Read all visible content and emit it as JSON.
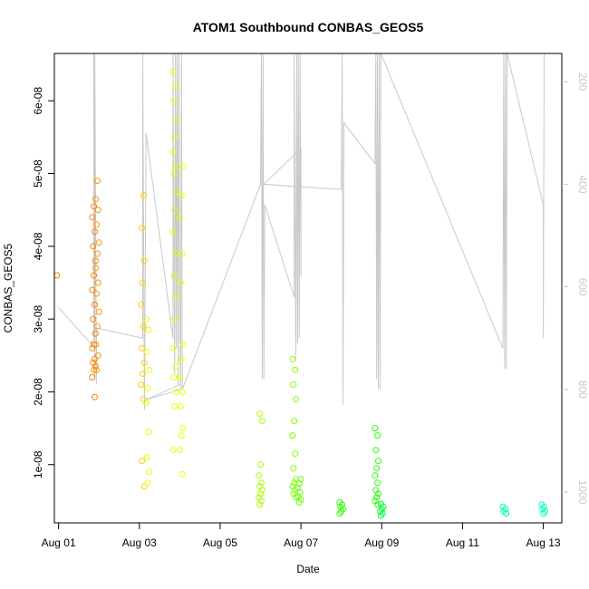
{
  "chart_data": {
    "type": "scatter",
    "title": "ATOM1 Southbound CONBAS_GEOS5",
    "xlabel": "Date",
    "ylabel": "CONBAS_GEOS5",
    "xlim": [
      "2016-07-31T21:30",
      "2016-08-13T11:00"
    ],
    "ylim": [
      2e-09,
      6.65e-08
    ],
    "x_ticks": [
      "Aug 01",
      "Aug 03",
      "Aug 05",
      "Aug 07",
      "Aug 09",
      "Aug 11",
      "Aug 13"
    ],
    "y_ticks": [
      "1e-08",
      "2e-08",
      "3e-08",
      "4e-08",
      "5e-08",
      "6e-08"
    ],
    "secondary_axis": {
      "position": "right",
      "reversed": true,
      "ylim": [
        1060,
        145
      ],
      "ticks": [
        "200",
        "400",
        "600",
        "800",
        "1000"
      ],
      "color": "#c8c8c8"
    },
    "grid": false,
    "legend": "none",
    "colors": {
      "orange": "#ff8000",
      "amber": "#ffaa00",
      "yellow": "#e6ff00",
      "green_yellow": "#aaff00",
      "green": "#33ff00",
      "bright_green": "#00ff3c",
      "cyan": "#00ffc0",
      "altitude": "#c8c8c8"
    },
    "clusters": [
      {
        "x": "2016-08-01T00:00",
        "values": [
          3.6e-08
        ],
        "color": "#ff8000"
      },
      {
        "x": "2016-08-01T21:00",
        "values": [
          1.93e-08,
          2.2e-08,
          2.3e-08,
          2.35e-08,
          2.4e-08,
          2.45e-08,
          2.6e-08,
          2.65e-08,
          2.8e-08,
          3e-08,
          3.2e-08,
          3.4e-08,
          3.6e-08,
          3.8e-08,
          4e-08,
          4.2e-08,
          4.4e-08,
          4.55e-08
        ],
        "color": "#ff8000"
      },
      {
        "x": "2016-08-01T23:00",
        "values": [
          2.3e-08,
          2.5e-08,
          2.65e-08,
          2.9e-08,
          3.1e-08,
          3.35e-08,
          3.5e-08,
          3.7e-08,
          3.9e-08,
          4.05e-08,
          4.3e-08,
          4.5e-08,
          4.65e-08,
          4.9e-08
        ],
        "color": "#ff9500"
      },
      {
        "x": "2016-08-03T02:00",
        "values": [
          7e-09,
          1.05e-08,
          1.9e-08,
          2.1e-08,
          2.25e-08,
          2.4e-08,
          2.6e-08,
          2.9e-08,
          3.2e-08,
          3.5e-08,
          3.8e-08,
          4.25e-08,
          4.7e-08
        ],
        "color": "#ffd000"
      },
      {
        "x": "2016-08-03T05:00",
        "values": [
          7.5e-09,
          9e-09,
          1.1e-08,
          1.45e-08,
          1.85e-08,
          2.05e-08,
          2.3e-08,
          2.55e-08,
          2.85e-08,
          3e-08
        ],
        "color": "#e6ff00"
      },
      {
        "x": "2016-08-03T21:00",
        "values": [
          1.2e-08,
          1.8e-08,
          2e-08,
          2.2e-08,
          2.35e-08,
          2.6e-08,
          3e-08,
          3.3e-08,
          3.6e-08,
          3.9e-08,
          4.2e-08,
          4.5e-08,
          4.75e-08,
          5e-08,
          5.1e-08,
          5.3e-08,
          5.5e-08,
          5.75e-08,
          6e-08,
          6.2e-08,
          6.4e-08
        ],
        "color": "#e6ff00"
      },
      {
        "x": "2016-08-04T01:00",
        "values": [
          8.7e-09,
          1.2e-08,
          1.4e-08,
          1.5e-08,
          1.8e-08,
          2e-08,
          2.2e-08,
          2.45e-08,
          2.65e-08,
          3.5e-08,
          3.9e-08,
          4.4e-08,
          4.7e-08,
          5.1e-08
        ],
        "color": "#f0ff00"
      },
      {
        "x": "2016-08-06T00:00",
        "values": [
          4.5e-09,
          5e-09,
          5.5e-09,
          6e-09,
          6.5e-09,
          7e-09,
          7.5e-09,
          8.5e-09,
          1e-08,
          1.6e-08,
          1.7e-08
        ],
        "color": "#aaff00"
      },
      {
        "x": "2016-08-06T20:00",
        "values": [
          5.5e-09,
          6e-09,
          6.5e-09,
          7e-09,
          7.5e-09,
          8e-09,
          9.5e-09,
          1.15e-08,
          1.4e-08,
          1.6e-08,
          1.9e-08,
          2.1e-08,
          2.3e-08,
          2.45e-08
        ],
        "color": "#80ff00"
      },
      {
        "x": "2016-08-06T23:00",
        "values": [
          4.8e-09,
          5.2e-09,
          5.6e-09,
          6.2e-09,
          6.8e-09,
          7.4e-09,
          8e-09
        ],
        "color": "#66ff00"
      },
      {
        "x": "2016-08-08T00:00",
        "values": [
          3.3e-09,
          3.6e-09,
          3.9e-09,
          4.2e-09,
          4.5e-09,
          4.8e-09
        ],
        "color": "#33ff00"
      },
      {
        "x": "2016-08-08T21:00",
        "values": [
          4.5e-09,
          5e-09,
          5.5e-09,
          6e-09,
          6.5e-09,
          7.5e-09,
          8.5e-09,
          9.5e-09,
          1.05e-08,
          1.2e-08,
          1.4e-08,
          1.5e-08
        ],
        "color": "#22ff00"
      },
      {
        "x": "2016-08-09T00:00",
        "values": [
          3e-09,
          3.3e-09,
          3.6e-09,
          3.9e-09,
          4.2e-09,
          4.6e-09
        ],
        "color": "#00ff3c"
      },
      {
        "x": "2016-08-12T01:00",
        "values": [
          3.3e-09,
          3.6e-09,
          3.9e-09,
          4.2e-09
        ],
        "color": "#00ffa0"
      },
      {
        "x": "2016-08-13T00:00",
        "values": [
          3.3e-09,
          3.6e-09,
          3.9e-09,
          4.2e-09,
          4.5e-09
        ],
        "color": "#00ffc0"
      }
    ],
    "altitude_track": [
      {
        "x": "2016-08-01T00:00",
        "p": 640
      },
      {
        "x": "2016-08-01T19:00",
        "p": 710
      },
      {
        "x": "2016-08-01T21:00",
        "p": 700
      },
      {
        "x": "2016-08-01T21:00",
        "p": 145
      },
      {
        "x": "2016-08-01T21:30",
        "p": 780
      },
      {
        "x": "2016-08-01T21:30",
        "p": 145
      },
      {
        "x": "2016-08-01T22:30",
        "p": 790
      },
      {
        "x": "2016-08-01T22:30",
        "p": 680
      },
      {
        "x": "2016-08-03T02:00",
        "p": 700
      },
      {
        "x": "2016-08-03T02:00",
        "p": 145
      },
      {
        "x": "2016-08-03T03:00",
        "p": 840
      },
      {
        "x": "2016-08-03T04:00",
        "p": 300
      },
      {
        "x": "2016-08-03T20:00",
        "p": 700
      },
      {
        "x": "2016-08-03T20:00",
        "p": 145
      },
      {
        "x": "2016-08-03T21:00",
        "p": 770
      },
      {
        "x": "2016-08-03T21:30",
        "p": 145
      },
      {
        "x": "2016-08-03T22:00",
        "p": 720
      },
      {
        "x": "2016-08-03T22:30",
        "p": 145
      },
      {
        "x": "2016-08-03T23:00",
        "p": 790
      },
      {
        "x": "2016-08-03T23:30",
        "p": 145
      },
      {
        "x": "2016-08-04T00:00",
        "p": 690
      },
      {
        "x": "2016-08-04T00:30",
        "p": 800
      },
      {
        "x": "2016-08-03T04:00",
        "p": 820
      },
      {
        "x": "2016-08-04T00:30",
        "p": 790
      },
      {
        "x": "2016-08-04T01:00",
        "p": 145
      },
      {
        "x": "2016-08-04T01:30",
        "p": 800
      },
      {
        "x": "2016-08-06T00:00",
        "p": 400
      },
      {
        "x": "2016-08-06T00:30",
        "p": 145
      },
      {
        "x": "2016-08-06T01:00",
        "p": 780
      },
      {
        "x": "2016-08-06T01:30",
        "p": 145
      },
      {
        "x": "2016-08-06T02:00",
        "p": 780
      },
      {
        "x": "2016-08-06T02:30",
        "p": 440
      },
      {
        "x": "2016-08-06T20:00",
        "p": 620
      },
      {
        "x": "2016-08-06T20:00",
        "p": 145
      },
      {
        "x": "2016-08-06T21:00",
        "p": 740
      },
      {
        "x": "2016-08-06T21:30",
        "p": 145
      },
      {
        "x": "2016-08-06T22:00",
        "p": 710
      },
      {
        "x": "2016-08-06T22:30",
        "p": 145
      },
      {
        "x": "2016-08-06T23:00",
        "p": 700
      },
      {
        "x": "2016-08-06T23:30",
        "p": 145
      },
      {
        "x": "2016-08-07T00:00",
        "p": 580
      },
      {
        "x": "2016-08-07T00:00",
        "p": 330
      },
      {
        "x": "2016-08-06T02:00",
        "p": 400
      },
      {
        "x": "2016-08-08T00:00",
        "p": 410
      },
      {
        "x": "2016-08-08T00:30",
        "p": 145
      },
      {
        "x": "2016-08-08T01:00",
        "p": 830
      },
      {
        "x": "2016-08-08T01:30",
        "p": 280
      },
      {
        "x": "2016-08-08T20:00",
        "p": 360
      },
      {
        "x": "2016-08-08T20:30",
        "p": 145
      },
      {
        "x": "2016-08-08T21:00",
        "p": 780
      },
      {
        "x": "2016-08-08T21:30",
        "p": 145
      },
      {
        "x": "2016-08-08T22:00",
        "p": 800
      },
      {
        "x": "2016-08-08T22:30",
        "p": 145
      },
      {
        "x": "2016-08-08T23:00",
        "p": 800
      },
      {
        "x": "2016-08-08T23:30",
        "p": 145
      },
      {
        "x": "2016-08-12T00:00",
        "p": 720
      },
      {
        "x": "2016-08-12T00:30",
        "p": 145
      },
      {
        "x": "2016-08-12T01:00",
        "p": 760
      },
      {
        "x": "2016-08-12T01:30",
        "p": 145
      },
      {
        "x": "2016-08-12T02:00",
        "p": 760
      },
      {
        "x": "2016-08-12T02:30",
        "p": 145
      },
      {
        "x": "2016-08-13T00:00",
        "p": 440
      },
      {
        "x": "2016-08-13T00:00",
        "p": 700
      },
      {
        "x": "2016-08-13T00:30",
        "p": 145
      }
    ]
  }
}
